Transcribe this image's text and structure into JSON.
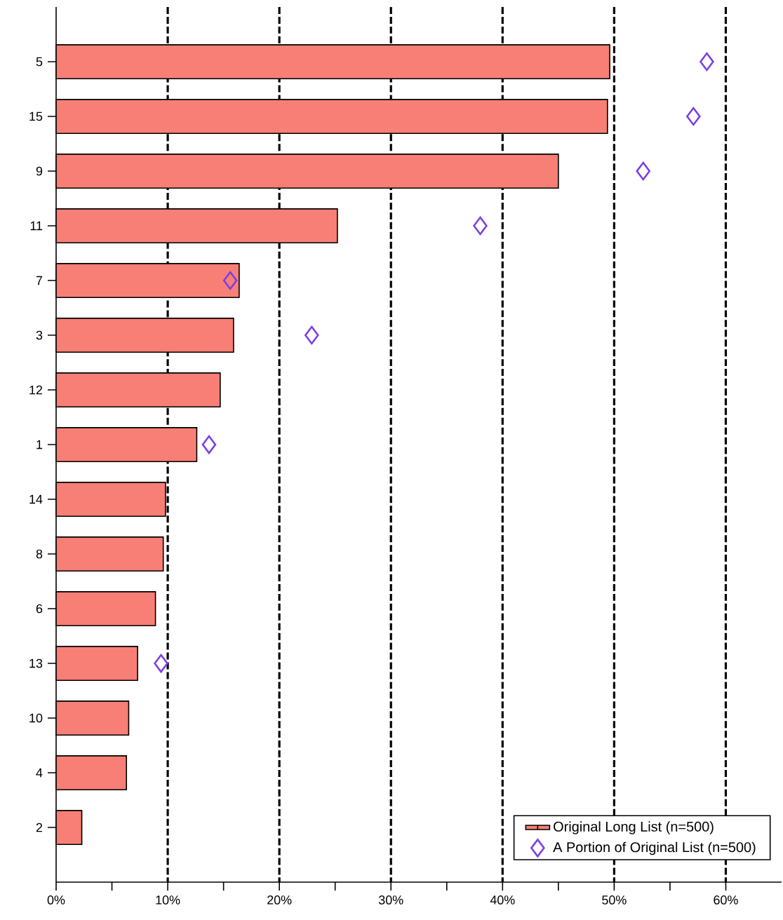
{
  "chart_data": {
    "type": "bar",
    "orientation": "horizontal",
    "categories": [
      "5",
      "15",
      "9",
      "11",
      "7",
      "3",
      "12",
      "1",
      "14",
      "8",
      "6",
      "13",
      "10",
      "4",
      "2"
    ],
    "series": [
      {
        "name": "Original Long List (n=500)",
        "color": "#f77f76",
        "values": [
          49.6,
          49.4,
          45.0,
          25.2,
          16.4,
          15.9,
          14.7,
          12.6,
          9.8,
          9.6,
          8.9,
          7.3,
          6.5,
          6.3,
          2.3
        ]
      },
      {
        "name": "A Portion of Original List (n=500)",
        "type": "scatter",
        "marker": "diamond",
        "color": "#7b3fe4",
        "values": [
          58.3,
          57.1,
          52.6,
          38.0,
          15.6,
          22.9,
          null,
          13.7,
          null,
          null,
          null,
          9.4,
          null,
          null,
          null
        ]
      }
    ],
    "xlim": [
      0,
      65
    ],
    "xticks": [
      {
        "value": 0,
        "label": "0%"
      },
      {
        "value": 5,
        "label": null
      },
      {
        "value": 10,
        "label": "10%"
      },
      {
        "value": 15,
        "label": null
      },
      {
        "value": 20,
        "label": "20%"
      },
      {
        "value": 25,
        "label": null
      },
      {
        "value": 30,
        "label": "30%"
      },
      {
        "value": 35,
        "label": null
      },
      {
        "value": 40,
        "label": "40%"
      },
      {
        "value": 45,
        "label": null
      },
      {
        "value": 50,
        "label": "50%"
      },
      {
        "value": 55,
        "label": null
      },
      {
        "value": 60,
        "label": "60%"
      }
    ],
    "grid": "x",
    "legend": "bottom right"
  }
}
